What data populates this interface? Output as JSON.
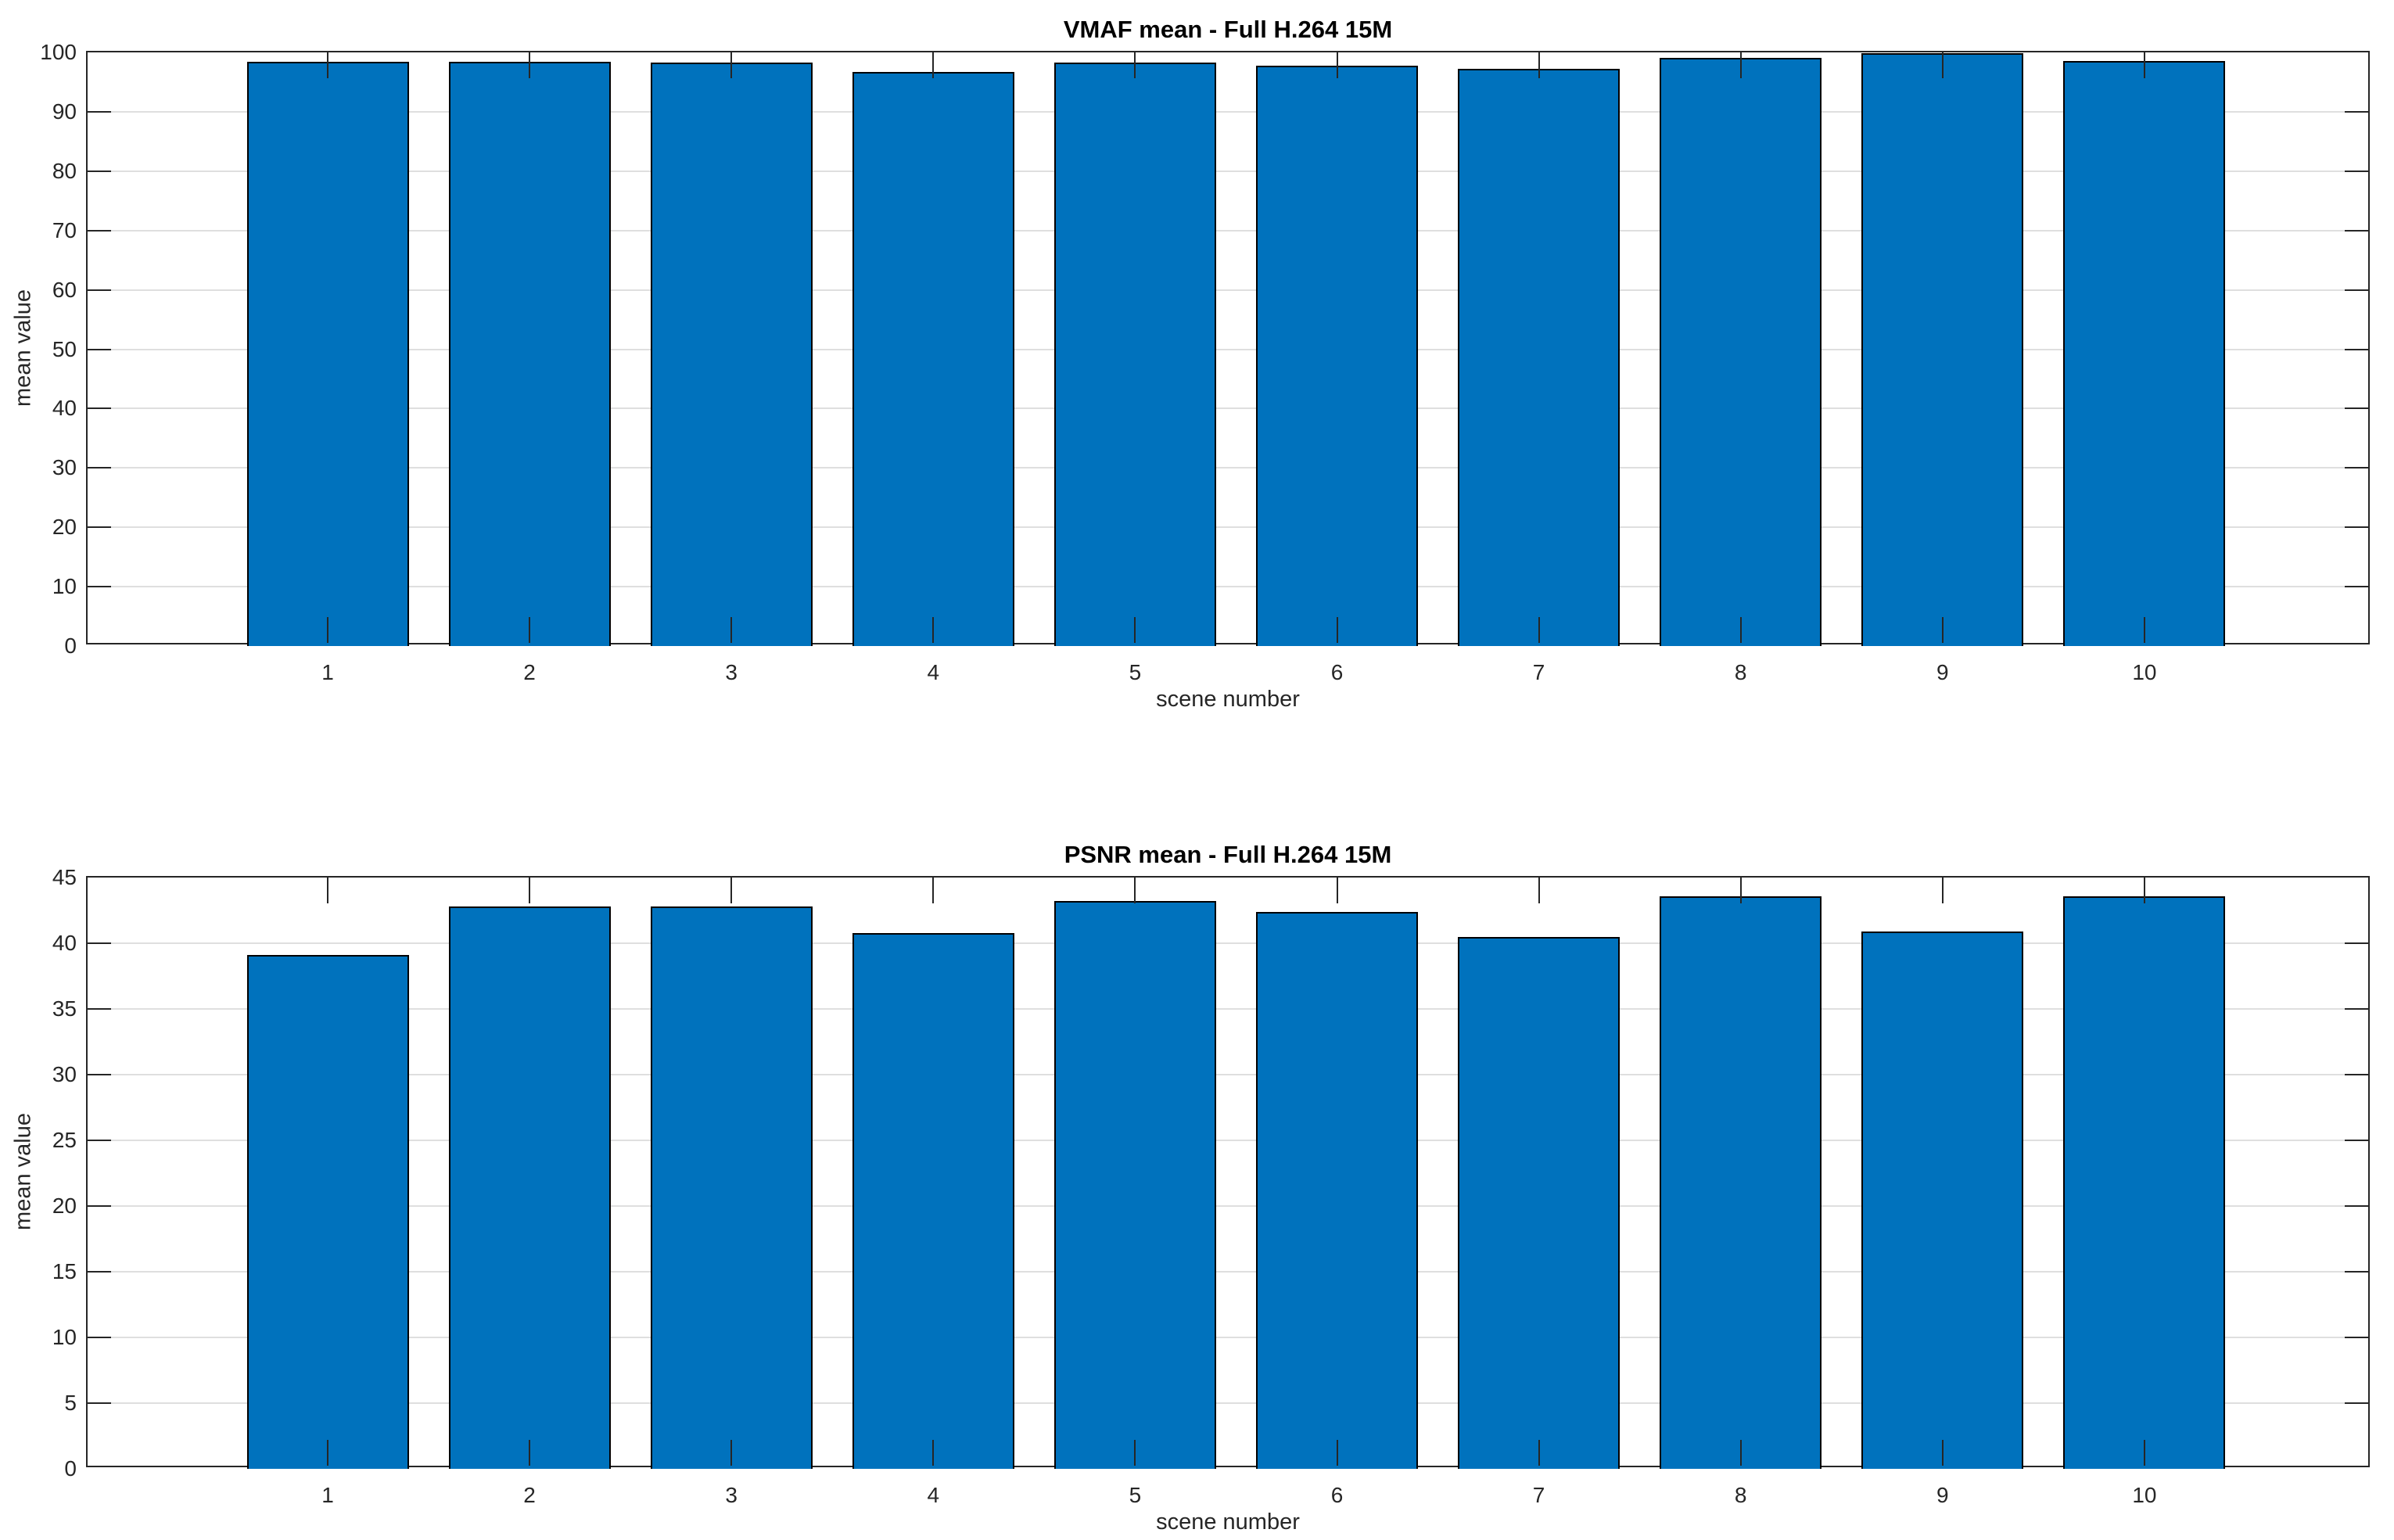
{
  "figure": {
    "background": "#ffffff",
    "axis_color": "#262626",
    "grid_color": "rgba(38,38,38,0.15)"
  },
  "chart_data": [
    {
      "type": "bar",
      "title": "VMAF mean - Full H.264 15M",
      "xlabel": "scene number",
      "ylabel": "mean value",
      "categories": [
        "1",
        "2",
        "3",
        "4",
        "5",
        "6",
        "7",
        "8",
        "9",
        "10"
      ],
      "values": [
        98.4,
        98.4,
        98.3,
        96.7,
        98.3,
        97.8,
        97.2,
        99.1,
        99.9,
        98.6
      ],
      "ylim": [
        0,
        100
      ],
      "yticks": [
        0,
        10,
        20,
        30,
        40,
        50,
        60,
        70,
        80,
        90,
        100
      ],
      "grid": "horizontal",
      "legend": "none",
      "bar_color": "#0072BD",
      "bar_edge_color": "#000000"
    },
    {
      "type": "bar",
      "title": "PSNR mean - Full H.264 15M",
      "xlabel": "scene number",
      "ylabel": "mean value",
      "categories": [
        "1",
        "2",
        "3",
        "4",
        "5",
        "6",
        "7",
        "8",
        "9",
        "10"
      ],
      "values": [
        39.1,
        42.8,
        42.8,
        40.8,
        43.2,
        42.4,
        40.5,
        43.6,
        40.9,
        43.6
      ],
      "ylim": [
        0,
        45
      ],
      "yticks": [
        0,
        5,
        10,
        15,
        20,
        25,
        30,
        35,
        40,
        45
      ],
      "grid": "horizontal",
      "legend": "none",
      "bar_color": "#0072BD",
      "bar_edge_color": "#000000"
    }
  ]
}
